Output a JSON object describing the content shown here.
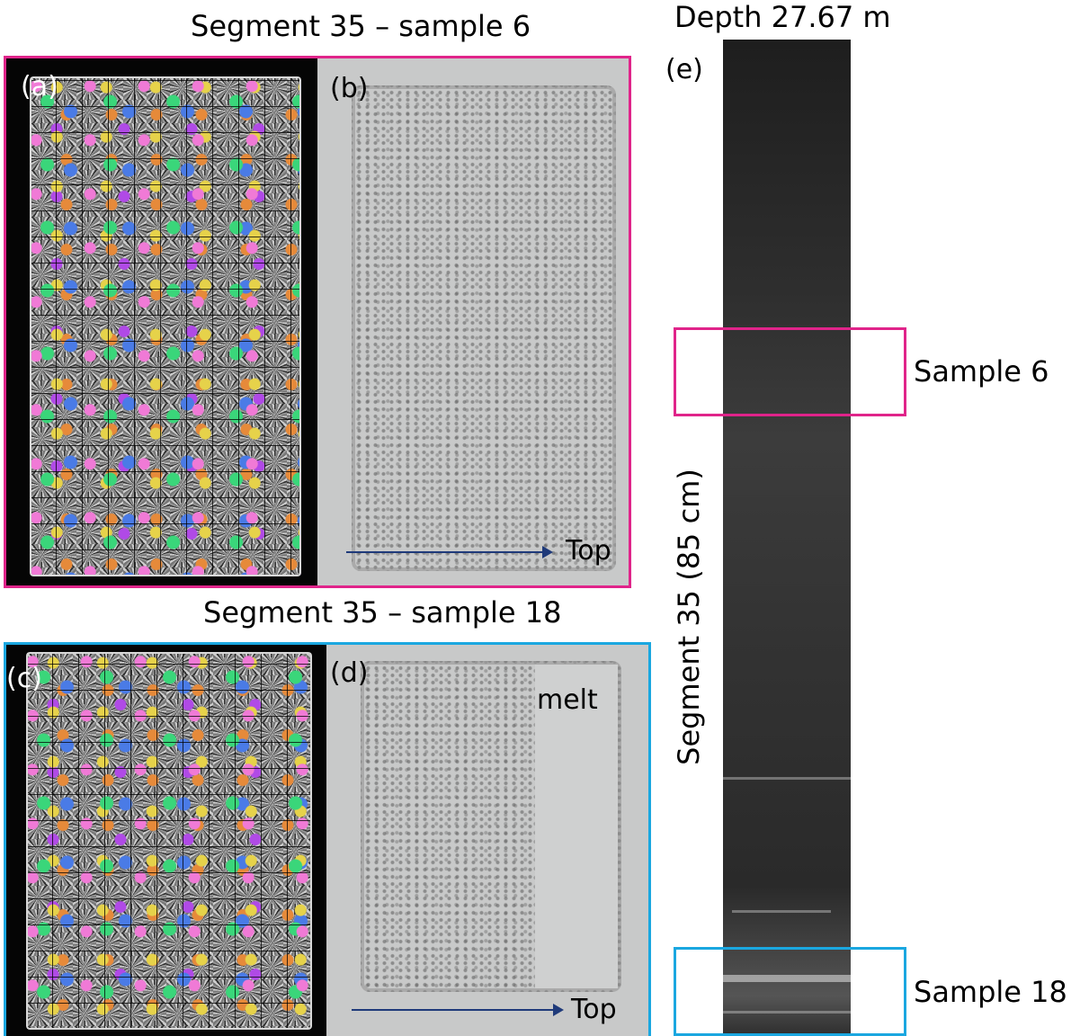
{
  "titles": {
    "top": "Segment 35 – sample 6",
    "bottom": "Segment 35 – sample 18",
    "depth": "Depth 27.67 m",
    "segment_vertical": "Segment 35 (85 cm)"
  },
  "panels": {
    "a": "(a)",
    "b": "(b)",
    "c": "(c)",
    "d": "(d)",
    "e": "(e)"
  },
  "annotations": {
    "top_b": "Top",
    "top_d": "Top",
    "melt": "melt",
    "sample6": "Sample 6",
    "sample18": "Sample 18"
  },
  "colors": {
    "sample6_frame": "#e0248a",
    "sample18_frame": "#1aa7e0",
    "arrow": "#1f3a7a"
  }
}
